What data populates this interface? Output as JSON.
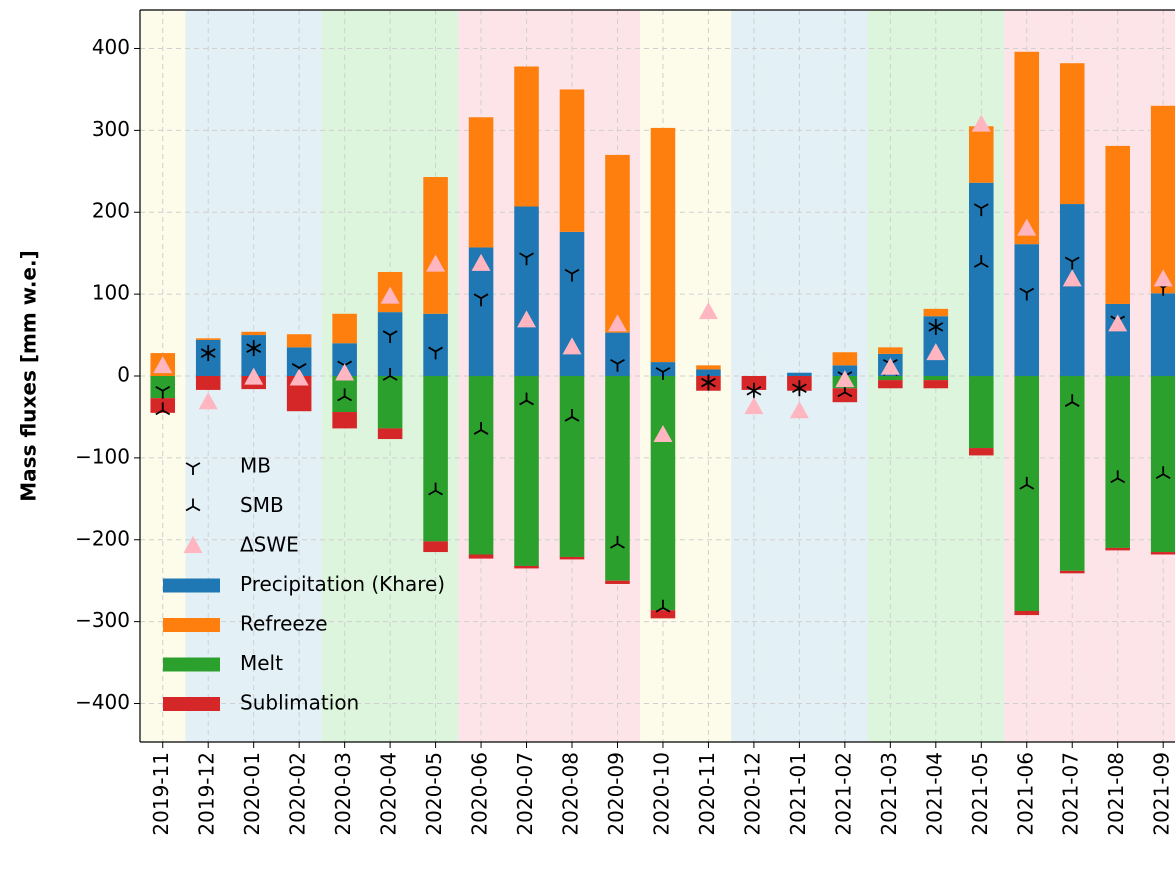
{
  "chart_data": {
    "type": "bar",
    "y_label": "Mass fluxes [mm w.e.]",
    "categories": [
      "2019-11",
      "2019-12",
      "2020-01",
      "2020-02",
      "2020-03",
      "2020-04",
      "2020-05",
      "2020-06",
      "2020-07",
      "2020-08",
      "2020-09",
      "2020-10",
      "2020-11",
      "2020-12",
      "2021-01",
      "2021-02",
      "2021-03",
      "2021-04",
      "2021-05",
      "2021-06",
      "2021-07",
      "2021-08",
      "2021-09"
    ],
    "xlim": [
      -0.5,
      22.26
    ],
    "ylim": [
      -447,
      447
    ],
    "yticks": [
      {
        "value": -400,
        "label": "−400"
      },
      {
        "value": -300,
        "label": "−300"
      },
      {
        "value": -200,
        "label": "−200"
      },
      {
        "value": -100,
        "label": "−100"
      },
      0,
      100,
      200,
      300,
      400
    ],
    "grid": true,
    "legend": "lower left",
    "shading": [
      {
        "from": "2019-11",
        "to": "2019-11",
        "color": "#fdfcea"
      },
      {
        "from": "2019-12",
        "to": "2020-02",
        "color": "#e3f0f6"
      },
      {
        "from": "2020-03",
        "to": "2020-05",
        "color": "#ddf5dc"
      },
      {
        "from": "2020-06",
        "to": "2020-09",
        "color": "#fde4e8"
      },
      {
        "from": "2020-10",
        "to": "2020-11",
        "color": "#fdfcea"
      },
      {
        "from": "2020-12",
        "to": "2021-02",
        "color": "#e3f0f6"
      },
      {
        "from": "2021-03",
        "to": "2021-05",
        "color": "#ddf5dc"
      },
      {
        "from": "2021-06",
        "to": "2021-09",
        "color": "#fde4e8"
      }
    ],
    "series": [
      {
        "name": "MB",
        "kind": "marker",
        "marker": "tri_up",
        "color": "#000000",
        "values": [
          -18,
          28,
          34,
          10,
          13,
          50,
          30,
          95,
          145,
          125,
          15,
          5,
          -8,
          -18,
          -15,
          0,
          15,
          60,
          205,
          102,
          140,
          68,
          108
        ]
      },
      {
        "name": "SMB",
        "kind": "marker",
        "marker": "tri_down",
        "color": "#000000",
        "values": [
          -42,
          28,
          34,
          -3,
          -25,
          0,
          -140,
          -66,
          -30,
          -50,
          -205,
          -283,
          -8,
          -18,
          -15,
          -20,
          6,
          60,
          138,
          -133,
          -32,
          -125,
          -120
        ]
      },
      {
        "name": "ΔSWE",
        "kind": "marker",
        "marker": "triangle",
        "color": "#ffb6c1",
        "values": [
          12,
          -32,
          -2,
          -3,
          3,
          97,
          136,
          137,
          68,
          35,
          63,
          -72,
          78,
          -38,
          -43,
          -5,
          10,
          28,
          307,
          180,
          118,
          63,
          118
        ]
      },
      {
        "name": "Precipitation (Khare)",
        "kind": "bar",
        "stack": "pos",
        "color": "#1f77b4",
        "values": [
          0,
          44,
          50,
          35,
          40,
          78,
          76,
          157,
          207,
          176,
          53,
          17,
          8,
          0,
          4,
          13,
          27,
          73,
          236,
          161,
          210,
          88,
          101
        ]
      },
      {
        "name": "Refreeze",
        "kind": "bar",
        "stack": "pos",
        "color": "#ff7f0e",
        "values": [
          28,
          2,
          4,
          16,
          36,
          49,
          167,
          159,
          171,
          174,
          217,
          286,
          5,
          0,
          0,
          16,
          8,
          9,
          69,
          235,
          172,
          193,
          229
        ]
      },
      {
        "name": "Melt",
        "kind": "bar",
        "stack": "neg",
        "color": "#2ca02c",
        "values": [
          -27,
          0,
          0,
          0,
          -44,
          -64,
          -202,
          -218,
          -232,
          -221,
          -250,
          -286,
          0,
          0,
          0,
          -15,
          -5,
          -5,
          -88,
          -287,
          -238,
          -210,
          -215
        ]
      },
      {
        "name": "Sublimation",
        "kind": "bar",
        "stack": "neg",
        "color": "#d62728",
        "values": [
          -18,
          -17,
          -16,
          -43,
          -20,
          -13,
          -13,
          -5,
          -3,
          -3,
          -4,
          -10,
          -18,
          -17,
          -18,
          -17,
          -10,
          -10,
          -9,
          -5,
          -3,
          -3,
          -3
        ]
      }
    ]
  }
}
